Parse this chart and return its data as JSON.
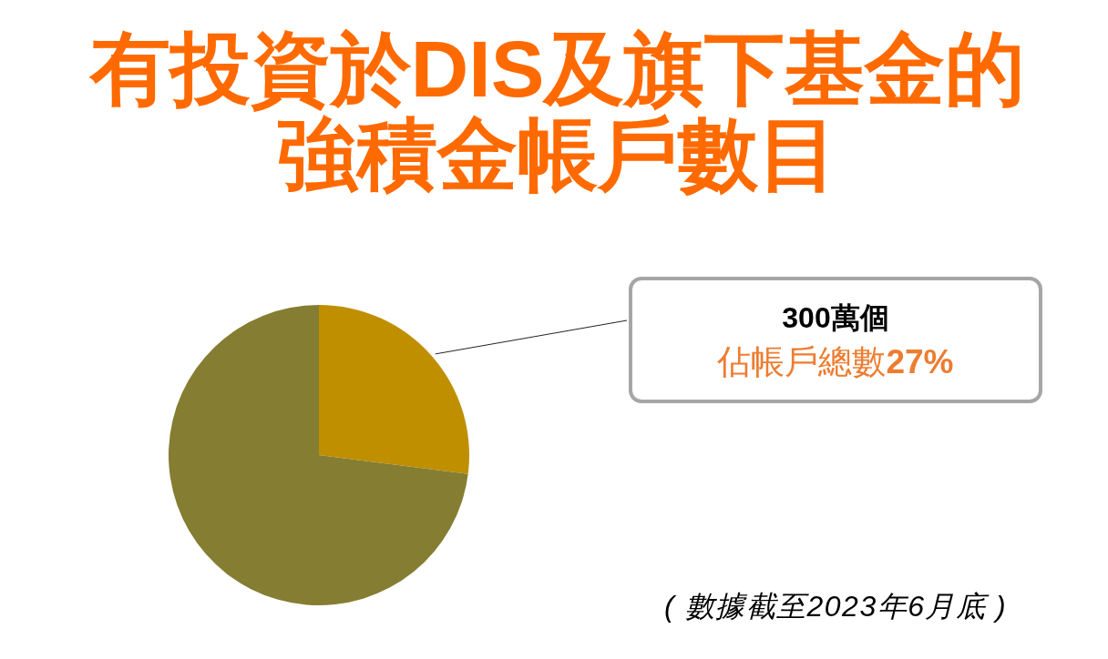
{
  "chart_data": {
    "type": "pie",
    "title": "有投資於DIS及旗下基金的強積金帳戶數目",
    "categories": [
      null,
      null
    ],
    "values": [
      27,
      73
    ],
    "colors": [
      "#bf8f00",
      "#857d31"
    ],
    "annotations": [
      "300萬個",
      "佔帳戶總數27%",
      "( 數據截至2023年6月底 )"
    ]
  }
}
